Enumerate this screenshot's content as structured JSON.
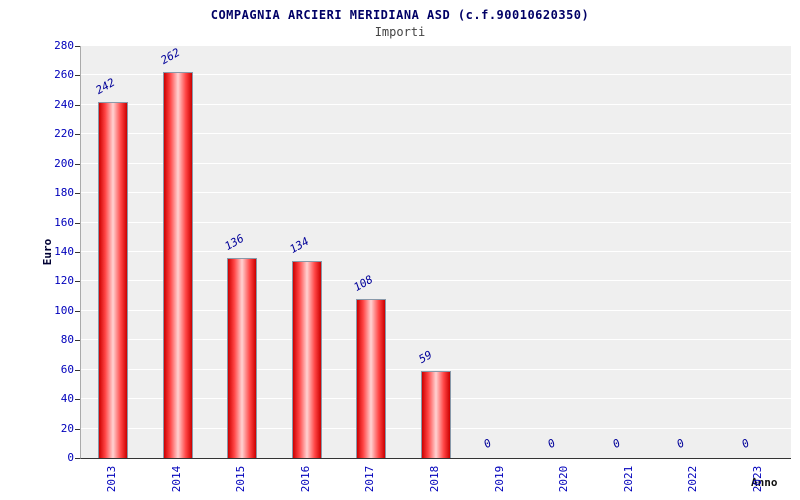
{
  "header": {
    "title": "COMPAGNIA ARCIERI MERIDIANA ASD (c.f.90010620350)",
    "subtitle": "Importi"
  },
  "chart_data": {
    "type": "bar",
    "title": "COMPAGNIA ARCIERI MERIDIANA ASD (c.f.90010620350)",
    "subtitle": "Importi",
    "categories": [
      "2013",
      "2014",
      "2015",
      "2016",
      "2017",
      "2018",
      "2019",
      "2020",
      "2021",
      "2022",
      "2023"
    ],
    "values": [
      242,
      262,
      136,
      134,
      108,
      59,
      0,
      0,
      0,
      0,
      0
    ],
    "xlabel": "Anno",
    "ylabel": "Euro",
    "ylim": [
      0,
      280
    ],
    "ytick_step": 20,
    "grid": true,
    "legend": "none",
    "colors": {
      "bar": "#cc0000",
      "bar_highlight": "#ffd2d2",
      "bar_border": "#8899aa",
      "tick_label": "#0000bb",
      "value_label": "#000099",
      "title": "#000066",
      "subtitle": "#444444",
      "plot_background": "#efefef",
      "grid_line": "#ffffff"
    }
  }
}
